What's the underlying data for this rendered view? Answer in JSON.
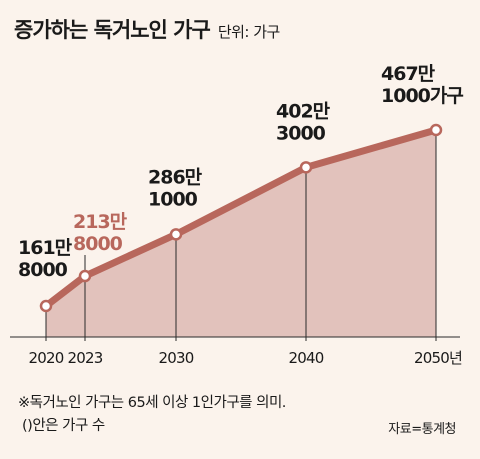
{
  "title": "증가하는 독거노인 가구",
  "unit": "단위: 가구",
  "chart_data": {
    "type": "area",
    "x": [
      "2020",
      "2023",
      "2030",
      "2040",
      "2050"
    ],
    "values": [
      1618000,
      2138000,
      2861000,
      4023000,
      4671000
    ],
    "point_labels": [
      [
        "161만",
        "8000"
      ],
      [
        "213만",
        "8000"
      ],
      [
        "286만",
        "1000"
      ],
      [
        "402만",
        "3000"
      ],
      [
        "467만",
        "1000가구"
      ]
    ],
    "tick_labels": [
      "2020",
      "2023",
      "2030",
      "2040",
      "2050년"
    ],
    "highlight_index": 1,
    "colors": {
      "line": "#b8675c",
      "area": "#e2c2bc",
      "highlight_label": "#b8675c",
      "marker_fill": "#ffffff"
    }
  },
  "footnote": {
    "line1": "※독거노인 가구는 65세 이상 1인가구를 의미.",
    "line2": "()안은 가구 수"
  },
  "source": "자료=통계청"
}
